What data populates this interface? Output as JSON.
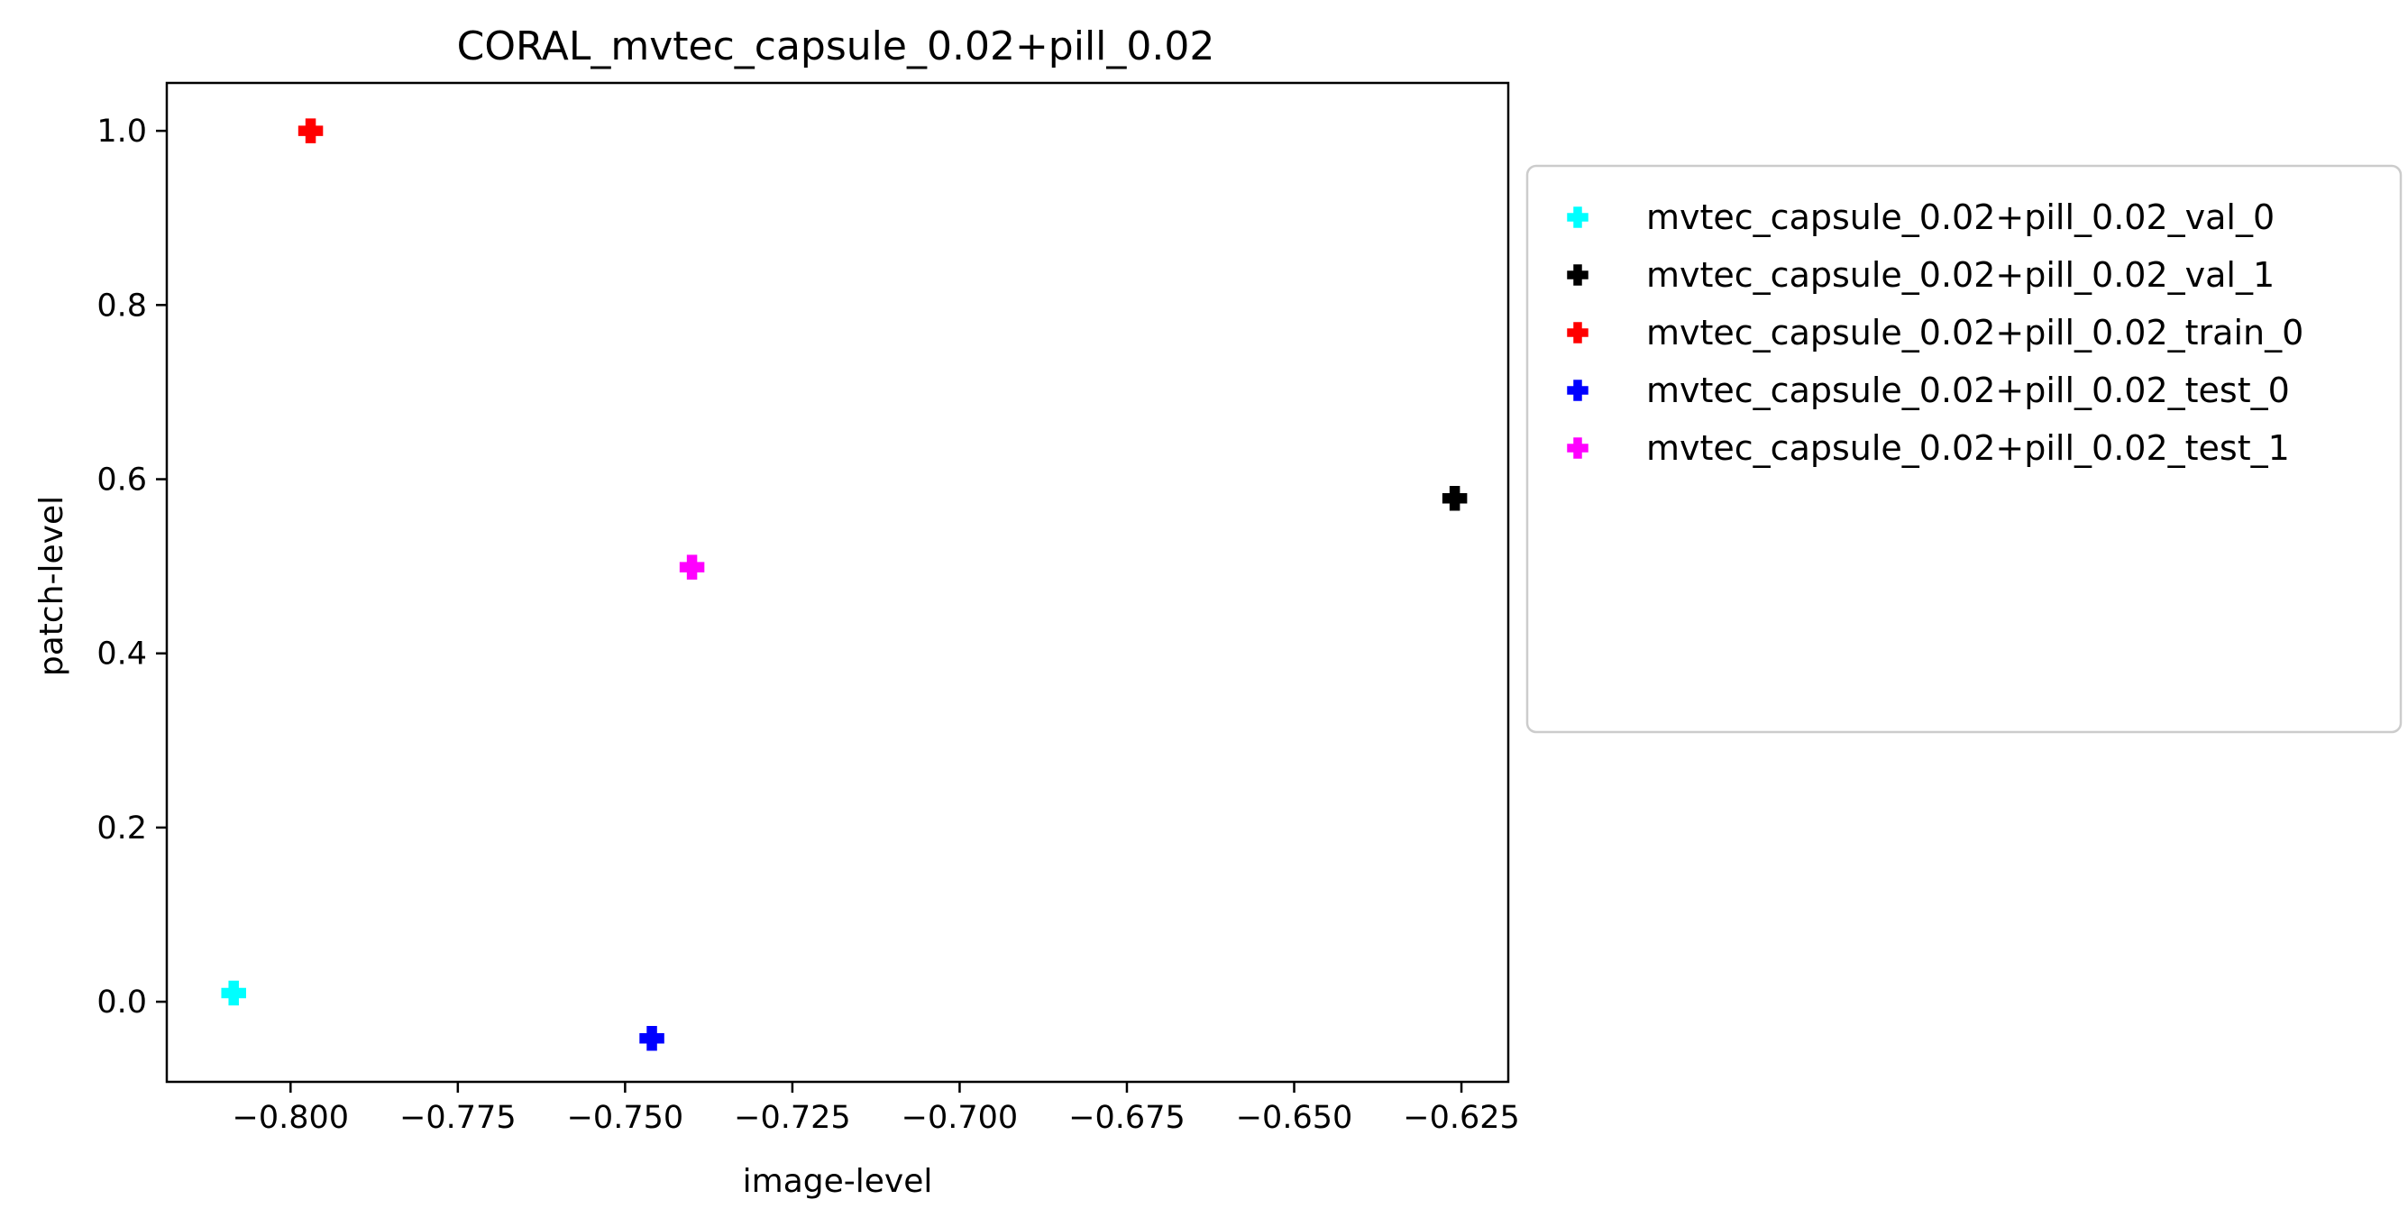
{
  "chart_data": {
    "type": "scatter",
    "title": "CORAL_mvtec_capsule_0.02+pill_0.02",
    "xlabel": "image-level",
    "ylabel": "patch-level",
    "xlim": [
      -0.8185,
      -0.618
    ],
    "ylim": [
      -0.092,
      1.055
    ],
    "xticks": [
      -0.8,
      -0.775,
      -0.75,
      -0.725,
      -0.7,
      -0.675,
      -0.65,
      -0.625
    ],
    "xtick_labels": [
      "−0.800",
      "−0.775",
      "−0.750",
      "−0.725",
      "−0.700",
      "−0.675",
      "−0.650",
      "−0.625"
    ],
    "yticks": [
      0.0,
      0.2,
      0.4,
      0.6,
      0.8,
      1.0
    ],
    "ytick_labels": [
      "0.0",
      "0.2",
      "0.4",
      "0.6",
      "0.8",
      "1.0"
    ],
    "grid": false,
    "marker": "plus-filled",
    "legend_position": "outside-right",
    "series": [
      {
        "name": "mvtec_capsule_0.02+pill_0.02_val_0",
        "color": "#00ffff",
        "x": [
          -0.8085
        ],
        "y": [
          0.01
        ]
      },
      {
        "name": "mvtec_capsule_0.02+pill_0.02_val_1",
        "color": "#000000",
        "x": [
          -0.626
        ],
        "y": [
          0.578
        ]
      },
      {
        "name": "mvtec_capsule_0.02+pill_0.02_train_0",
        "color": "#ff0000",
        "x": [
          -0.797
        ],
        "y": [
          1.0
        ]
      },
      {
        "name": "mvtec_capsule_0.02+pill_0.02_test_0",
        "color": "#0000ff",
        "x": [
          -0.746
        ],
        "y": [
          -0.042
        ]
      },
      {
        "name": "mvtec_capsule_0.02+pill_0.02_test_1",
        "color": "#ff00ff",
        "x": [
          -0.74
        ],
        "y": [
          0.499
        ]
      }
    ]
  }
}
